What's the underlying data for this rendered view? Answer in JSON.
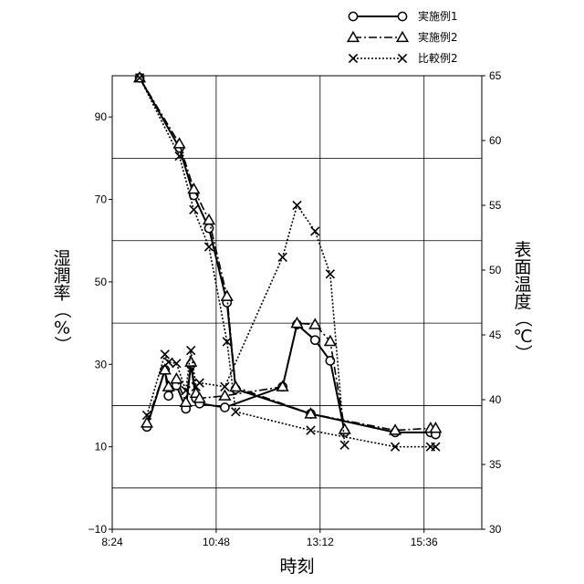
{
  "chart_data": {
    "type": "line",
    "xlabel": "時刻",
    "ylabel_left": "湿潤率（%）",
    "ylabel_right": "表面温度（℃）",
    "xlim": [
      504,
      1016
    ],
    "ylim_left": [
      -10,
      100
    ],
    "ylim_right": [
      30,
      65
    ],
    "x_ticks": [
      504,
      648,
      792,
      936
    ],
    "x_tick_labels": [
      "8:24",
      "10:48",
      "13:12",
      "15:36"
    ],
    "y_left_tick_values": [
      -10,
      10,
      30,
      50,
      70,
      90
    ],
    "y_left_tick_labels": [
      "−10",
      "10",
      "30",
      "50",
      "70",
      "90"
    ],
    "y_left_gridlines": [
      0,
      20,
      40,
      60,
      80,
      100
    ],
    "y_right_tick_values": [
      30,
      35,
      40,
      45,
      50,
      55,
      60,
      65
    ],
    "y_right_tick_labels": [
      "30",
      "35",
      "40",
      "45",
      "50",
      "55",
      "60",
      "65"
    ],
    "legend": {
      "position": "top-right",
      "entries": [
        "実施例1",
        "実施例2",
        "比較例2"
      ]
    },
    "series": [
      {
        "name": "実施例1",
        "axis": "left",
        "style": "solid",
        "marker": "circle",
        "x": [
          542,
          597,
          617,
          638,
          663,
          675,
          779,
          896,
          945,
          952
        ],
        "y": [
          99.5,
          82.5,
          71.0,
          63.0,
          45.0,
          24.0,
          18.0,
          13.5,
          13.5,
          13.0
        ]
      },
      {
        "name": "実施例2",
        "axis": "left",
        "style": "dashdot",
        "marker": "triangle",
        "x": [
          542,
          597,
          617,
          638,
          663,
          675,
          779,
          896,
          945,
          952
        ],
        "y": [
          99.5,
          83.5,
          72.5,
          65.0,
          46.5,
          24.5,
          18.0,
          14.0,
          14.5,
          14.5
        ]
      },
      {
        "name": "比較例2",
        "axis": "left",
        "style": "dotted",
        "marker": "x",
        "x": [
          542,
          597,
          617,
          638,
          663,
          675,
          779,
          896,
          945,
          952
        ],
        "y": [
          99.5,
          80.5,
          67.5,
          58.5,
          35.5,
          18.5,
          14.0,
          10.0,
          10.0,
          10.0
        ]
      },
      {
        "name": "実施例1",
        "axis": "right",
        "style": "solid",
        "marker": "circle",
        "x": [
          552,
          577,
          582,
          593,
          606,
          613,
          620,
          625,
          660,
          740,
          760,
          785,
          806,
          826
        ],
        "y": [
          37.9,
          42.3,
          40.3,
          41.1,
          39.3,
          42.7,
          40.1,
          39.7,
          39.4,
          41.0,
          45.8,
          44.6,
          43.0,
          37.5
        ]
      },
      {
        "name": "実施例2",
        "axis": "right",
        "style": "dashdot",
        "marker": "triangle",
        "x": [
          552,
          577,
          582,
          593,
          606,
          613,
          620,
          625,
          660,
          740,
          760,
          785,
          806,
          826
        ],
        "y": [
          38.2,
          42.3,
          41.0,
          41.6,
          39.8,
          42.9,
          40.5,
          40.1,
          40.3,
          41.0,
          45.9,
          45.8,
          44.5,
          37.7
        ]
      },
      {
        "name": "比較例2",
        "axis": "right",
        "style": "dotted",
        "marker": "x",
        "x": [
          552,
          577,
          582,
          593,
          606,
          613,
          620,
          625,
          660,
          740,
          760,
          785,
          806,
          826
        ],
        "y": [
          38.8,
          43.5,
          42.9,
          42.8,
          40.7,
          43.8,
          41.0,
          41.3,
          41.0,
          51.0,
          55.0,
          53.0,
          49.7,
          36.5
        ]
      }
    ]
  }
}
